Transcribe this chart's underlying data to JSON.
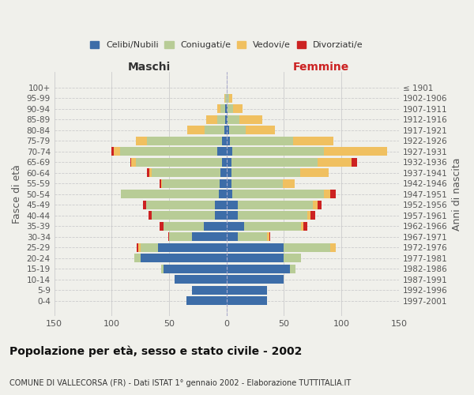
{
  "age_groups": [
    "0-4",
    "5-9",
    "10-14",
    "15-19",
    "20-24",
    "25-29",
    "30-34",
    "35-39",
    "40-44",
    "45-49",
    "50-54",
    "55-59",
    "60-64",
    "65-69",
    "70-74",
    "75-79",
    "80-84",
    "85-89",
    "90-94",
    "95-99",
    "100+"
  ],
  "birth_years": [
    "1997-2001",
    "1992-1996",
    "1987-1991",
    "1982-1986",
    "1977-1981",
    "1972-1976",
    "1967-1971",
    "1962-1966",
    "1957-1961",
    "1952-1956",
    "1947-1951",
    "1942-1946",
    "1937-1941",
    "1932-1936",
    "1927-1931",
    "1922-1926",
    "1917-1921",
    "1912-1916",
    "1907-1911",
    "1902-1906",
    "≤ 1901"
  ],
  "maschi": {
    "celibi": [
      35,
      30,
      45,
      55,
      75,
      60,
      30,
      20,
      10,
      10,
      7,
      6,
      5,
      4,
      8,
      4,
      2,
      1,
      1,
      0,
      0
    ],
    "coniugati": [
      0,
      0,
      0,
      2,
      5,
      15,
      20,
      35,
      55,
      60,
      85,
      50,
      60,
      75,
      85,
      65,
      17,
      7,
      4,
      1,
      0
    ],
    "vedovi": [
      0,
      0,
      0,
      0,
      0,
      2,
      0,
      0,
      0,
      0,
      0,
      1,
      2,
      4,
      5,
      10,
      15,
      10,
      3,
      1,
      0
    ],
    "divorziati": [
      0,
      0,
      0,
      0,
      0,
      1,
      1,
      3,
      3,
      3,
      0,
      1,
      2,
      1,
      2,
      0,
      0,
      0,
      0,
      0,
      0
    ]
  },
  "femmine": {
    "nubili": [
      35,
      35,
      50,
      55,
      50,
      50,
      10,
      15,
      10,
      10,
      5,
      4,
      4,
      4,
      5,
      3,
      2,
      1,
      1,
      0,
      0
    ],
    "coniugate": [
      0,
      0,
      0,
      5,
      15,
      40,
      25,
      50,
      60,
      65,
      80,
      45,
      60,
      75,
      80,
      55,
      15,
      10,
      5,
      2,
      0
    ],
    "vedove": [
      0,
      0,
      0,
      0,
      0,
      5,
      2,
      2,
      3,
      4,
      5,
      10,
      25,
      30,
      55,
      35,
      25,
      20,
      8,
      3,
      0
    ],
    "divorziate": [
      0,
      0,
      0,
      0,
      0,
      0,
      1,
      3,
      4,
      4,
      5,
      0,
      0,
      5,
      0,
      0,
      0,
      0,
      0,
      0,
      0
    ]
  },
  "colors": {
    "celibi": "#3d6da8",
    "coniugati": "#b8cc96",
    "vedovi": "#f0c060",
    "divorziati": "#cc2222"
  },
  "xlim": 150,
  "title": "Popolazione per età, sesso e stato civile - 2002",
  "subtitle": "COMUNE DI VALLECORSA (FR) - Dati ISTAT 1° gennaio 2002 - Elaborazione TUTTITALIA.IT",
  "ylabel": "Fasce di età",
  "ylabel_right": "Anni di nascita",
  "bg_color": "#f0f0eb",
  "grid_color": "#cccccc"
}
